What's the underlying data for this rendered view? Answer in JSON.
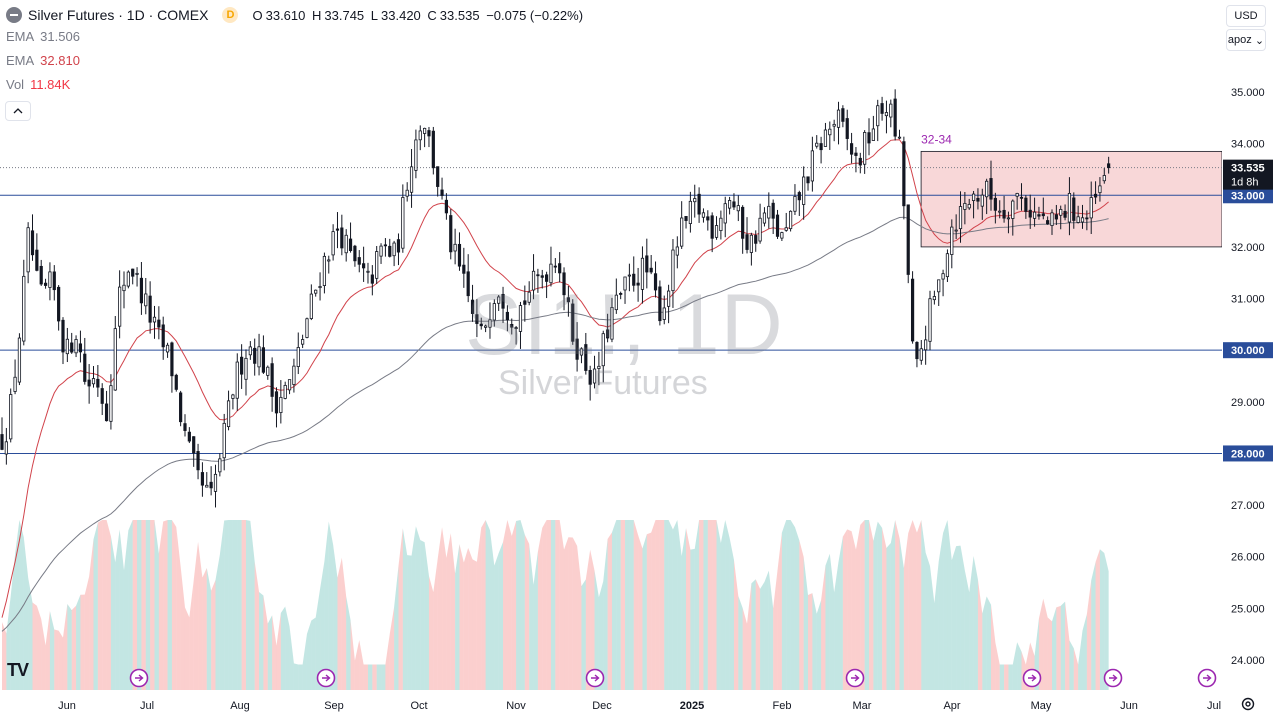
{
  "header": {
    "title": "Silver Futures · 1D · COMEX",
    "badge": "D",
    "ohlc": {
      "o_label": "O",
      "o": "33.610",
      "h_label": "H",
      "h": "33.745",
      "l_label": "L",
      "l": "33.420",
      "c_label": "C",
      "c": "33.535",
      "change": "−0.075 (−0.22%)"
    },
    "ema1_label": "EMA",
    "ema1_value": "31.506",
    "ema2_label": "EMA",
    "ema2_value": "32.810",
    "vol_label": "Vol",
    "vol_value": "11.84K"
  },
  "controls": {
    "currency": "USD",
    "scale_mode": "apoz"
  },
  "watermark": {
    "symbol": "SI1!, 1D",
    "name": "Silver Futures"
  },
  "colors": {
    "up": "#26a69a",
    "down": "#ef5350",
    "ema_fast": "#d1434b",
    "ema_slow": "#787b86",
    "hline": "#2a4d9a",
    "zone_fill": "#f8d7d8",
    "zone_border": "#131722",
    "annotation": "#9c27b0"
  },
  "icons": {
    "logo": "tradingview-logo-icon",
    "settings": "gear-icon",
    "events": "arrow-right-circle-icon"
  },
  "chart_data": {
    "type": "candlestick",
    "y_axis": {
      "min": 24.0,
      "max": 35.0,
      "ticks": [
        "24.000",
        "25.000",
        "26.000",
        "27.000",
        "28.000",
        "29.000",
        "30.000",
        "31.000",
        "32.000",
        "33.000",
        "34.000",
        "35.000"
      ]
    },
    "x_axis": {
      "labels": [
        "Jun",
        "Jul",
        "Aug",
        "Sep",
        "Oct",
        "Nov",
        "Dec",
        "2025",
        "Feb",
        "Mar",
        "Apr",
        "May",
        "Jun",
        "Jul"
      ]
    },
    "price_anchors": [
      [
        0,
        28.3
      ],
      [
        4,
        28.6
      ],
      [
        10,
        30.2
      ],
      [
        16,
        32.3
      ],
      [
        22,
        31.0
      ],
      [
        30,
        31.3
      ],
      [
        38,
        29.9
      ],
      [
        44,
        30.4
      ],
      [
        50,
        29.3
      ],
      [
        56,
        29.5
      ],
      [
        62,
        28.8
      ],
      [
        70,
        31.1
      ],
      [
        76,
        31.7
      ],
      [
        84,
        31.0
      ],
      [
        92,
        30.3
      ],
      [
        100,
        29.8
      ],
      [
        108,
        28.4
      ],
      [
        116,
        27.5
      ],
      [
        124,
        27.1
      ],
      [
        130,
        28.0
      ],
      [
        138,
        29.4
      ],
      [
        146,
        30.1
      ],
      [
        154,
        29.9
      ],
      [
        162,
        29.0
      ],
      [
        172,
        29.4
      ],
      [
        182,
        30.7
      ],
      [
        192,
        31.8
      ],
      [
        200,
        32.4
      ],
      [
        208,
        31.7
      ],
      [
        218,
        31.3
      ],
      [
        226,
        32.0
      ],
      [
        234,
        31.8
      ],
      [
        242,
        33.6
      ],
      [
        250,
        34.6
      ],
      [
        258,
        33.4
      ],
      [
        266,
        32.1
      ],
      [
        274,
        31.3
      ],
      [
        284,
        30.2
      ],
      [
        294,
        31.3
      ],
      [
        304,
        30.6
      ],
      [
        314,
        31.2
      ],
      [
        322,
        31.5
      ],
      [
        330,
        31.9
      ],
      [
        338,
        30.4
      ],
      [
        344,
        29.9
      ],
      [
        352,
        29.4
      ],
      [
        362,
        30.7
      ],
      [
        372,
        31.3
      ],
      [
        382,
        31.6
      ],
      [
        392,
        30.7
      ],
      [
        402,
        32.2
      ],
      [
        412,
        32.8
      ],
      [
        422,
        32.4
      ],
      [
        432,
        33.0
      ],
      [
        444,
        32.0
      ],
      [
        454,
        32.7
      ],
      [
        464,
        32.1
      ],
      [
        476,
        33.2
      ],
      [
        486,
        34.0
      ],
      [
        496,
        34.5
      ],
      [
        508,
        33.6
      ],
      [
        518,
        34.4
      ],
      [
        526,
        34.8
      ],
      [
        534,
        33.8
      ],
      [
        542,
        29.4
      ],
      [
        550,
        30.6
      ],
      [
        556,
        31.2
      ],
      [
        564,
        32.4
      ],
      [
        574,
        32.9
      ],
      [
        584,
        33.1
      ],
      [
        594,
        32.7
      ],
      [
        604,
        33.0
      ],
      [
        614,
        32.6
      ],
      [
        624,
        32.4
      ],
      [
        634,
        32.8
      ],
      [
        644,
        32.5
      ],
      [
        654,
        33.2
      ],
      [
        660,
        33.53
      ]
    ],
    "bars_total": 660,
    "last_price": "33.535",
    "countdown": "1d 8h",
    "horizontal_levels": [
      "33.000",
      "30.000",
      "28.000"
    ],
    "zone": {
      "low": 32.0,
      "high": 33.85,
      "label": "32-34"
    },
    "series": [
      {
        "name": "EMA",
        "value": "31.506"
      },
      {
        "name": "EMA",
        "value": "32.810"
      },
      {
        "name": "Vol",
        "value": "11.84K"
      }
    ]
  }
}
